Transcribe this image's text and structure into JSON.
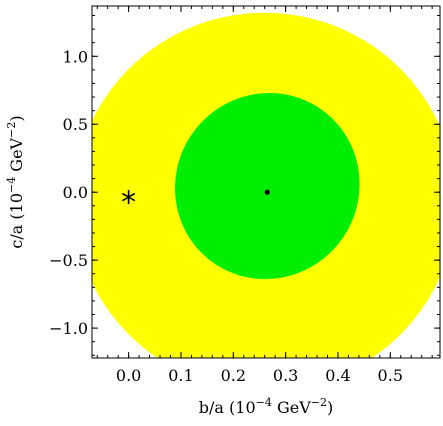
{
  "chart_data": {
    "type": "contour",
    "xlabel": {
      "base": "b/a (10",
      "exp": "−4",
      "unit": " GeV",
      "unit_exp": "−2",
      "close": ")"
    },
    "ylabel": {
      "base": "c/a (10",
      "exp": "−4",
      "unit": " GeV",
      "unit_exp": "−2",
      "close": ")"
    },
    "xlim": [
      -0.07,
      0.595
    ],
    "ylim": [
      -1.22,
      1.37
    ],
    "x_ticks": [
      {
        "value": 0.0,
        "label": "0.0"
      },
      {
        "value": 0.1,
        "label": "0.1"
      },
      {
        "value": 0.2,
        "label": "0.2"
      },
      {
        "value": 0.3,
        "label": "0.3"
      },
      {
        "value": 0.4,
        "label": "0.4"
      },
      {
        "value": 0.5,
        "label": "0.5"
      }
    ],
    "y_ticks": [
      {
        "value": 1.0,
        "label": "1.0"
      },
      {
        "value": 0.5,
        "label": "0.5"
      },
      {
        "value": 0.0,
        "label": "0.0"
      },
      {
        "value": -0.5,
        "label": "−0.5"
      },
      {
        "value": -1.0,
        "label": "−1.0"
      }
    ],
    "x_minor_step": 0.02,
    "y_minor_step": 0.1,
    "regions": [
      {
        "name": "outer",
        "color": "#ffff00",
        "shape": "ellipse",
        "center": [
          0.26,
          -0.07
        ],
        "rx": 0.365,
        "ry": 1.39
      },
      {
        "name": "inner",
        "color": "#00ee00",
        "shape": "ellipse",
        "center": [
          0.265,
          0.045
        ],
        "rx": 0.175,
        "ry": 0.69,
        "rotation_deg": 35
      }
    ],
    "best_fit": {
      "x": 0.265,
      "y": 0.0,
      "marker": "dot",
      "color": "#000000"
    },
    "reference_point": {
      "x": 0.0,
      "y": -0.03,
      "marker": "asterisk",
      "symbol": "*",
      "color": "#000000"
    }
  }
}
